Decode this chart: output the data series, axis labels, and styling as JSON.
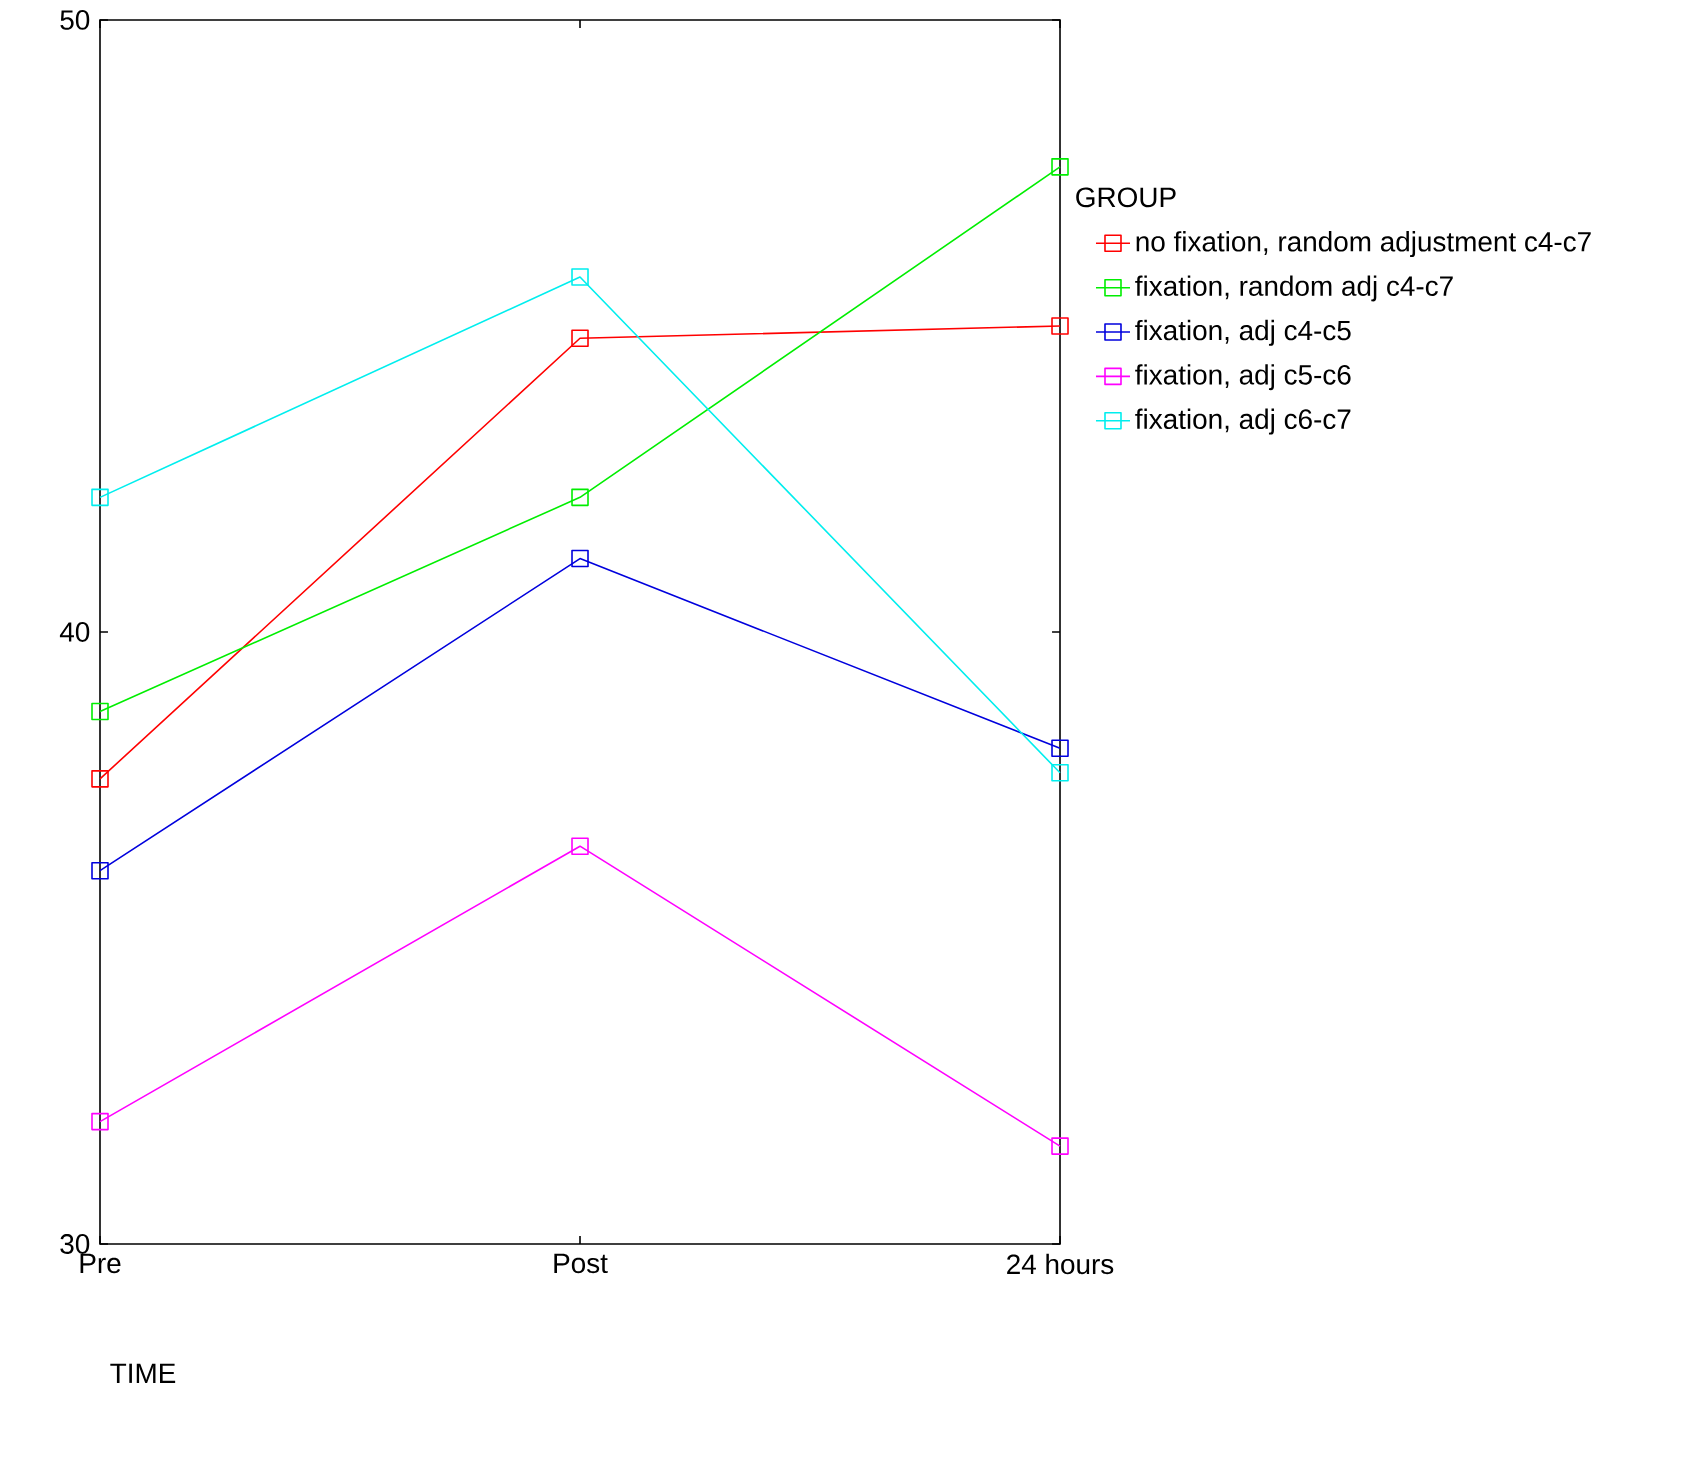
{
  "chart_data": {
    "type": "line",
    "xlabel": "TIME",
    "legend_title": "GROUP",
    "categories": [
      "Pre",
      "Post",
      "24 hours"
    ],
    "ylim": [
      30,
      50
    ],
    "yticks": [
      30,
      40,
      50
    ],
    "marker": "square",
    "legend": "right",
    "grid": false,
    "series": [
      {
        "name": "no fixation, random adjustment c4-c7",
        "color": "#ff0000",
        "values": [
          37.6,
          44.8,
          45.0
        ]
      },
      {
        "name": "fixation, random adj c4-c7",
        "color": "#00ee00",
        "values": [
          38.7,
          42.2,
          47.6
        ]
      },
      {
        "name": "fixation, adj c4-c5",
        "color": "#0000dd",
        "values": [
          36.1,
          41.2,
          38.1
        ]
      },
      {
        "name": "fixation, adj c5-c6",
        "color": "#ff00ff",
        "values": [
          32.0,
          36.5,
          31.6
        ]
      },
      {
        "name": "fixation, adj c6-c7",
        "color": "#00eeee",
        "values": [
          42.2,
          45.8,
          37.7
        ]
      }
    ]
  }
}
